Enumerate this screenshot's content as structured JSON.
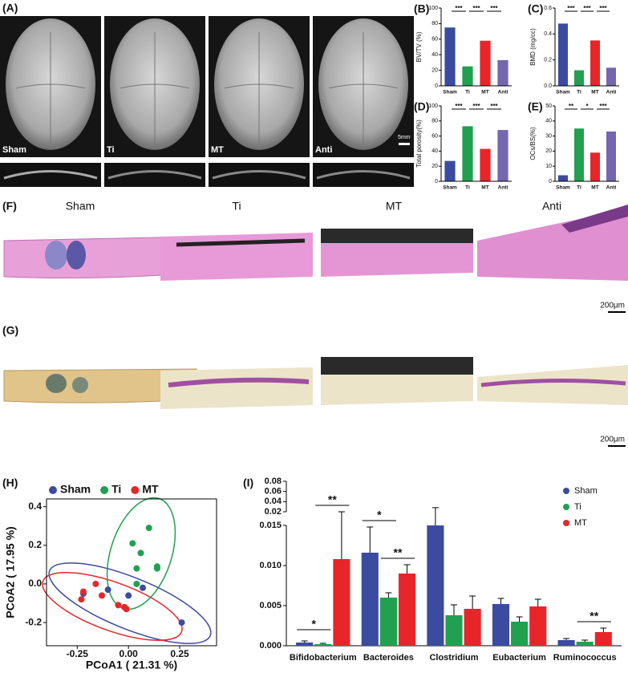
{
  "figure": {
    "panel_a": {
      "label": "(A)",
      "images": [
        "Sham",
        "Ti",
        "MT",
        "Anti"
      ],
      "scale_bar": "5mm"
    },
    "panel_f": {
      "label": "(F)",
      "columns": [
        "Sham",
        "Ti",
        "MT",
        "Anti"
      ],
      "scale_bar": "200μm"
    },
    "panel_g": {
      "label": "(G)",
      "scale_bar": "200μm"
    }
  },
  "chart_data": [
    {
      "type": "bar",
      "label": "(B)",
      "ylabel": "BV/TV (%)",
      "categories": [
        "Sham",
        "Ti",
        "MT",
        "Anti"
      ],
      "values": [
        75,
        25,
        58,
        33
      ],
      "colors": [
        "#3b4ba0",
        "#21a050",
        "#e8262a",
        "#7566b0"
      ],
      "ylim": [
        0,
        100
      ],
      "yticks": [
        0,
        20,
        40,
        60,
        80,
        100
      ],
      "annotations": [
        {
          "text": "***",
          "between": [
            "Sham",
            "Ti"
          ]
        },
        {
          "text": "***",
          "between": [
            "Ti",
            "MT"
          ]
        },
        {
          "text": "***",
          "between": [
            "MT",
            "Anti"
          ]
        }
      ]
    },
    {
      "type": "bar",
      "label": "(C)",
      "ylabel": "BMD (mg/cc)",
      "categories": [
        "Sham",
        "Ti",
        "MT",
        "Anti"
      ],
      "values": [
        0.48,
        0.12,
        0.35,
        0.14
      ],
      "colors": [
        "#3b4ba0",
        "#21a050",
        "#e8262a",
        "#7566b0"
      ],
      "ylim": [
        0,
        0.6
      ],
      "yticks": [
        {
          "value": 0,
          "label": "0.0"
        },
        0.2,
        0.4,
        0.6
      ],
      "annotations": [
        {
          "text": "***",
          "between": [
            "Sham",
            "Ti"
          ]
        },
        {
          "text": "***",
          "between": [
            "Ti",
            "MT"
          ]
        },
        {
          "text": "***",
          "between": [
            "MT",
            "Anti"
          ]
        }
      ]
    },
    {
      "type": "bar",
      "label": "(D)",
      "ylabel": "Total porosity(%)",
      "categories": [
        "Sham",
        "Ti",
        "MT",
        "Anti"
      ],
      "values": [
        27,
        73,
        43,
        68
      ],
      "colors": [
        "#3b4ba0",
        "#21a050",
        "#e8262a",
        "#7566b0"
      ],
      "ylim": [
        0,
        100
      ],
      "yticks": [
        0,
        20,
        40,
        60,
        80,
        100
      ],
      "annotations": [
        {
          "text": "***",
          "between": [
            "Sham",
            "Ti"
          ]
        },
        {
          "text": "***",
          "between": [
            "Ti",
            "MT"
          ]
        },
        {
          "text": "***",
          "between": [
            "MT",
            "Anti"
          ]
        }
      ]
    },
    {
      "type": "bar",
      "label": "(E)",
      "ylabel": "OCs/BS(%)",
      "categories": [
        "Sham",
        "Ti",
        "MT",
        "Anti"
      ],
      "values": [
        4,
        35,
        19,
        33
      ],
      "colors": [
        "#3b4ba0",
        "#21a050",
        "#e8262a",
        "#7566b0"
      ],
      "ylim": [
        0,
        50
      ],
      "yticks": [
        0,
        10,
        20,
        30,
        40,
        50
      ],
      "annotations": [
        {
          "text": "**",
          "between": [
            "Sham",
            "Ti"
          ]
        },
        {
          "text": "*",
          "between": [
            "Ti",
            "MT"
          ]
        },
        {
          "text": "***",
          "between": [
            "MT",
            "Anti"
          ]
        }
      ]
    },
    {
      "type": "scatter",
      "label": "(H)",
      "xlabel": "PCoA1 ( 21.31 %)",
      "ylabel": "PCoA2 ( 17.95 %)",
      "xlim": [
        -0.4,
        0.43
      ],
      "ylim": [
        -0.32,
        0.44
      ],
      "xticks": [
        -0.25,
        {
          "value": 0,
          "label": "0.00"
        },
        0.25
      ],
      "yticks": [
        -0.2,
        {
          "value": 0,
          "label": "0.0"
        },
        0.2,
        0.4
      ],
      "legend": "top",
      "series": [
        {
          "name": "Sham",
          "color": "#3b4ba0",
          "x": [
            -0.22,
            -0.1,
            0.0,
            0.07,
            0.26
          ],
          "y": [
            -0.05,
            -0.03,
            -0.06,
            -0.02,
            -0.2
          ]
        },
        {
          "name": "Ti",
          "color": "#21a050",
          "x": [
            0.02,
            0.1,
            0.06,
            0.14,
            0.14,
            0.04,
            0.04
          ],
          "y": [
            0.21,
            0.29,
            0.16,
            0.08,
            0.09,
            0.08,
            0.0
          ]
        },
        {
          "name": "MT",
          "color": "#e8262a",
          "x": [
            -0.22,
            -0.16,
            -0.23,
            -0.13,
            -0.05,
            -0.02,
            -0.01
          ],
          "y": [
            -0.04,
            0.0,
            -0.08,
            -0.06,
            -0.11,
            -0.12,
            -0.13
          ]
        }
      ]
    },
    {
      "type": "grouped_bar",
      "label": "(I)",
      "categories": [
        "Bifidobacterium",
        "Bacteroides",
        "Clostridium",
        "Eubacterium",
        "Ruminococcus"
      ],
      "ylim": [
        0,
        0.015
      ],
      "yticks": [
        {
          "value": 0,
          "label": "0.000"
        },
        0.005,
        {
          "value": 0.01,
          "label": "0.010"
        },
        0.015
      ],
      "ylim_upper": [
        0.02,
        0.08
      ],
      "yticks_upper": [
        0.02,
        0.04,
        0.06,
        0.08
      ],
      "legend": "upper right",
      "series": [
        {
          "name": "Sham",
          "color": "#3b4ba0",
          "values": [
            0.0004,
            0.0116,
            0.015,
            0.0052,
            0.0007
          ],
          "errors": [
            0.0002,
            0.0032,
            0.013,
            0.0007,
            0.0002
          ]
        },
        {
          "name": "Ti",
          "color": "#21a050",
          "values": [
            0.0002,
            0.006,
            0.0038,
            0.003,
            0.0005
          ],
          "errors": [
            0.0001,
            0.0006,
            0.0013,
            0.0006,
            0.0002
          ]
        },
        {
          "name": "MT",
          "color": "#e8262a",
          "values": [
            0.0108,
            0.009,
            0.0046,
            0.0049,
            0.0017
          ],
          "errors": [
            0.0092,
            0.0011,
            0.0016,
            0.0009,
            0.0005
          ]
        }
      ],
      "annotations": [
        {
          "text": "*",
          "category": "Bifidobacterium",
          "between": [
            "Sham",
            "Ti"
          ]
        },
        {
          "text": "**",
          "category": "Bifidobacterium",
          "between": [
            "Ti",
            "MT"
          ]
        },
        {
          "text": "*",
          "category": "Bacteroides",
          "between": [
            "Sham",
            "Ti"
          ]
        },
        {
          "text": "**",
          "category": "Bacteroides",
          "between": [
            "Ti",
            "MT"
          ]
        },
        {
          "text": "**",
          "category": "Ruminococcus",
          "between": [
            "Ti",
            "MT"
          ]
        }
      ]
    }
  ]
}
